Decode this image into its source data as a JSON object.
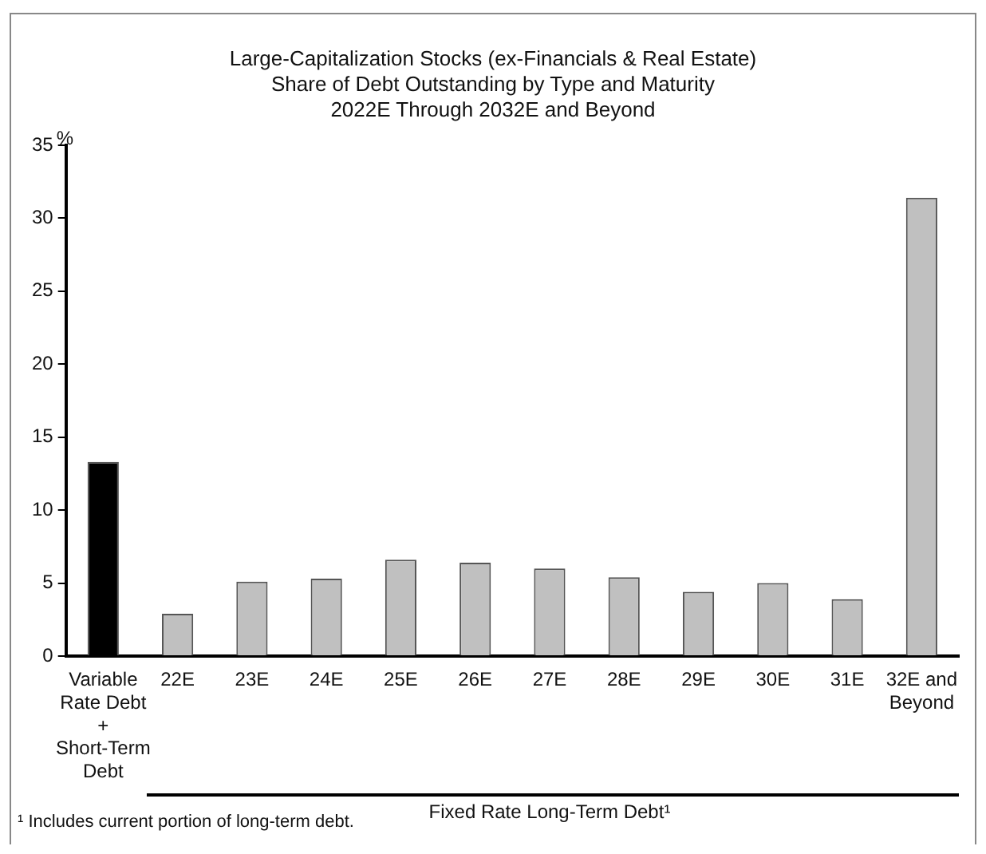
{
  "chart_data": {
    "type": "bar",
    "title": "Large-Capitalization Stocks (ex-Financials & Real Estate)",
    "subtitle": "Share of Debt Outstanding by Type and Maturity\n2022E Through 2032E and Beyond",
    "ylabel": "%",
    "categories": [
      "Variable Rate Debt + Short-Term Debt",
      "22E",
      "23E",
      "24E",
      "25E",
      "26E",
      "27E",
      "28E",
      "29E",
      "30E",
      "31E",
      "32E and Beyond"
    ],
    "values": [
      13.3,
      2.9,
      5.1,
      5.3,
      6.6,
      6.4,
      6.0,
      5.4,
      4.4,
      5.0,
      3.9,
      31.4
    ],
    "colors": [
      "#000000",
      "#c0c0c0",
      "#c0c0c0",
      "#c0c0c0",
      "#c0c0c0",
      "#c0c0c0",
      "#c0c0c0",
      "#c0c0c0",
      "#c0c0c0",
      "#c0c0c0",
      "#c0c0c0",
      "#c0c0c0"
    ],
    "ylim": [
      0,
      35
    ],
    "yticks": [
      0,
      5,
      10,
      15,
      20,
      25,
      30,
      35
    ],
    "grid": false,
    "legend": false,
    "annotations": [
      "Fixed Rate Long-Term Debt¹",
      "¹ Includes current portion of long-term debt."
    ]
  }
}
